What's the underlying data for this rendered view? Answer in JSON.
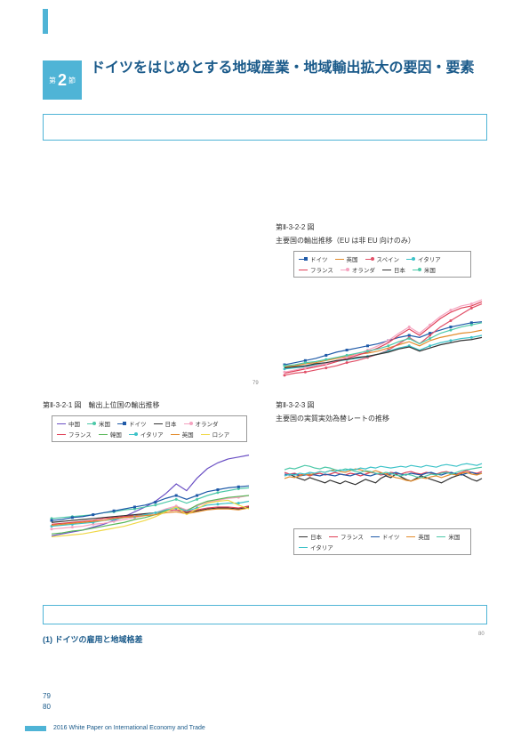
{
  "section": {
    "prefix": "第",
    "num": "2",
    "suffix": "節"
  },
  "title": "ドイツをはじめとする地域産業・地域輸出拡大の要因・要素",
  "chart1": {
    "id": "第Ⅱ-3-2-2 図",
    "title": "主要国の輸出推移（EU は非 EU 向けのみ）",
    "type": "line",
    "xlim": [
      0,
      20
    ],
    "ylim": [
      0,
      100
    ],
    "background": "#ffffff",
    "series": [
      {
        "name": "ドイツ",
        "color": "#1f5aa8",
        "marker": "square",
        "data": [
          22,
          24,
          26,
          28,
          31,
          34,
          36,
          38,
          40,
          42,
          45,
          48,
          50,
          48,
          52,
          55,
          58,
          60,
          62,
          63
        ]
      },
      {
        "name": "英国",
        "color": "#e38b2b",
        "marker": "none",
        "data": [
          20,
          21,
          23,
          24,
          26,
          28,
          30,
          32,
          33,
          35,
          38,
          41,
          44,
          40,
          45,
          48,
          50,
          52,
          53,
          55
        ]
      },
      {
        "name": "スペイン",
        "color": "#e15068",
        "marker": "circle",
        "data": [
          12,
          14,
          15,
          17,
          19,
          21,
          24,
          26,
          29,
          32,
          36,
          42,
          48,
          42,
          50,
          58,
          64,
          70,
          76,
          80
        ]
      },
      {
        "name": "イタリア",
        "color": "#3cc2c8",
        "marker": "circle",
        "data": [
          18,
          19,
          20,
          22,
          23,
          25,
          27,
          28,
          30,
          32,
          35,
          38,
          40,
          36,
          40,
          43,
          45,
          47,
          48,
          50
        ]
      },
      {
        "name": "フランス",
        "color": "#e04058",
        "marker": "none",
        "data": [
          14,
          16,
          18,
          20,
          22,
          25,
          28,
          31,
          34,
          38,
          43,
          50,
          56,
          50,
          58,
          66,
          72,
          76,
          78,
          82
        ]
      },
      {
        "name": "オランダ",
        "color": "#f5a3c0",
        "marker": "circle",
        "data": [
          15,
          17,
          19,
          21,
          23,
          26,
          29,
          32,
          36,
          40,
          45,
          52,
          58,
          52,
          60,
          68,
          74,
          78,
          80,
          84
        ]
      },
      {
        "name": "日本",
        "color": "#333333",
        "marker": "none",
        "data": [
          19,
          20,
          21,
          23,
          24,
          26,
          27,
          29,
          30,
          32,
          34,
          37,
          39,
          35,
          38,
          41,
          43,
          45,
          46,
          48
        ]
      },
      {
        "name": "米国",
        "color": "#4cc8a8",
        "marker": "circle",
        "data": [
          21,
          22,
          24,
          25,
          27,
          29,
          31,
          33,
          35,
          37,
          40,
          44,
          47,
          42,
          47,
          52,
          55,
          58,
          60,
          62
        ]
      }
    ]
  },
  "chart2": {
    "id": "第Ⅱ-3-2-1 図",
    "title": "輸出上位国の輸出推移",
    "type": "line",
    "xlim": [
      0,
      20
    ],
    "ylim": [
      0,
      100
    ],
    "background": "#ffffff",
    "series": [
      {
        "name": "中国",
        "color": "#6a4fc4",
        "marker": "none",
        "data": [
          8,
          10,
          12,
          14,
          17,
          20,
          24,
          28,
          33,
          38,
          44,
          52,
          62,
          55,
          68,
          78,
          84,
          88,
          90,
          92
        ]
      },
      {
        "name": "米国",
        "color": "#4cc8a8",
        "marker": "circle",
        "data": [
          26,
          27,
          28,
          29,
          30,
          32,
          33,
          35,
          36,
          38,
          40,
          43,
          46,
          42,
          46,
          50,
          53,
          55,
          57,
          58
        ]
      },
      {
        "name": "ドイツ",
        "color": "#1f5aa8",
        "marker": "square",
        "data": [
          24,
          25,
          27,
          28,
          30,
          32,
          34,
          36,
          38,
          40,
          43,
          47,
          50,
          46,
          50,
          54,
          56,
          58,
          59,
          60
        ]
      },
      {
        "name": "日本",
        "color": "#333333",
        "marker": "none",
        "data": [
          22,
          23,
          24,
          25,
          26,
          27,
          28,
          29,
          30,
          31,
          32,
          34,
          35,
          32,
          34,
          36,
          37,
          37,
          36,
          38
        ]
      },
      {
        "name": "オランダ",
        "color": "#f5a3c0",
        "marker": "circle",
        "data": [
          15,
          16,
          17,
          18,
          20,
          21,
          23,
          25,
          27,
          29,
          32,
          36,
          39,
          35,
          39,
          43,
          45,
          47,
          48,
          50
        ]
      },
      {
        "name": "フランス",
        "color": "#e04058",
        "marker": "none",
        "data": [
          20,
          21,
          22,
          23,
          24,
          26,
          27,
          28,
          29,
          30,
          32,
          34,
          35,
          33,
          35,
          37,
          38,
          38,
          37,
          39
        ]
      },
      {
        "name": "韓国",
        "color": "#5bb85b",
        "marker": "none",
        "data": [
          10,
          11,
          13,
          14,
          16,
          18,
          20,
          22,
          25,
          27,
          30,
          34,
          38,
          34,
          40,
          44,
          46,
          48,
          49,
          50
        ]
      },
      {
        "name": "イタリア",
        "color": "#3cc2c8",
        "marker": "circle",
        "data": [
          18,
          19,
          20,
          21,
          22,
          24,
          25,
          27,
          28,
          30,
          32,
          35,
          37,
          34,
          37,
          40,
          41,
          42,
          42,
          44
        ]
      },
      {
        "name": "英国",
        "color": "#e38b2b",
        "marker": "none",
        "data": [
          19,
          20,
          21,
          22,
          23,
          24,
          26,
          27,
          28,
          29,
          30,
          32,
          33,
          31,
          33,
          35,
          36,
          36,
          35,
          37
        ]
      },
      {
        "name": "ロシア",
        "color": "#f0d848",
        "marker": "none",
        "data": [
          7,
          8,
          9,
          10,
          12,
          14,
          16,
          18,
          21,
          24,
          28,
          33,
          38,
          30,
          36,
          42,
          44,
          45,
          40,
          36
        ]
      }
    ]
  },
  "chart3": {
    "id": "第Ⅱ-3-2-3 図",
    "title": "主要国の実質実効為替レートの推移",
    "type": "line",
    "xlim": [
      0,
      40
    ],
    "ylim": [
      0,
      100
    ],
    "background": "#ffffff",
    "series": [
      {
        "name": "日本",
        "color": "#333333",
        "marker": "none",
        "data": [
          48,
          50,
          47,
          45,
          43,
          46,
          44,
          42,
          40,
          43,
          41,
          39,
          42,
          40,
          38,
          41,
          44,
          42,
          40,
          45,
          48,
          46,
          50,
          47,
          44,
          42,
          45,
          48,
          46,
          44,
          42,
          40,
          43,
          46,
          48,
          50,
          47,
          44,
          42,
          45
        ]
      },
      {
        "name": "フランス",
        "color": "#e04058",
        "marker": "none",
        "data": [
          52,
          50,
          51,
          49,
          50,
          48,
          50,
          51,
          49,
          50,
          52,
          50,
          49,
          51,
          50,
          48,
          50,
          52,
          51,
          49,
          50,
          52,
          51,
          50,
          52,
          53,
          51,
          50,
          52,
          51,
          50,
          52,
          53,
          51,
          50,
          52,
          54,
          52,
          51,
          53
        ]
      },
      {
        "name": "ドイツ",
        "color": "#1f5aa8",
        "marker": "none",
        "data": [
          50,
          49,
          50,
          48,
          49,
          50,
          49,
          48,
          50,
          49,
          48,
          50,
          49,
          48,
          50,
          51,
          49,
          48,
          50,
          51,
          49,
          50,
          52,
          50,
          49,
          51,
          50,
          49,
          51,
          52,
          50,
          49,
          51,
          52,
          50,
          49,
          51,
          52,
          50,
          51
        ]
      },
      {
        "name": "英国",
        "color": "#e38b2b",
        "marker": "none",
        "data": [
          45,
          47,
          46,
          48,
          50,
          49,
          51,
          53,
          52,
          54,
          55,
          53,
          52,
          54,
          56,
          55,
          53,
          52,
          54,
          52,
          50,
          48,
          46,
          45,
          43,
          42,
          44,
          46,
          45,
          47,
          48,
          46,
          48,
          50,
          49,
          51,
          52,
          50,
          49,
          51
        ]
      },
      {
        "name": "米国",
        "color": "#4cc8a8",
        "marker": "none",
        "data": [
          55,
          57,
          56,
          58,
          60,
          59,
          57,
          56,
          58,
          57,
          55,
          54,
          56,
          55,
          53,
          52,
          54,
          53,
          51,
          50,
          52,
          51,
          49,
          48,
          50,
          49,
          47,
          46,
          48,
          50,
          49,
          51,
          52,
          50,
          52,
          54,
          55,
          56,
          57,
          58
        ]
      },
      {
        "name": "イタリア",
        "color": "#3cc2c8",
        "marker": "none",
        "data": [
          48,
          50,
          49,
          51,
          50,
          52,
          51,
          53,
          52,
          54,
          53,
          55,
          54,
          56,
          55,
          57,
          56,
          58,
          57,
          59,
          58,
          57,
          58,
          59,
          58,
          60,
          59,
          58,
          60,
          59,
          58,
          60,
          61,
          60,
          59,
          61,
          62,
          61,
          60,
          62
        ]
      }
    ]
  },
  "subsection": "(1) ドイツの雇用と地域格差",
  "footnote_ref": "80",
  "footnote_num": "79",
  "page_nums": [
    "79",
    "80"
  ],
  "footer": "2016 White Paper on International Economy and Trade"
}
